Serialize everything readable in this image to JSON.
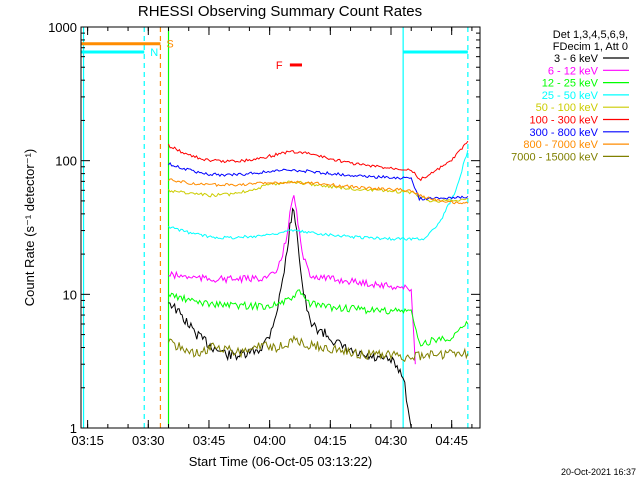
{
  "chart_data": {
    "type": "line",
    "title": "RHESSI Observing Summary Count Rates",
    "xlabel": "Start Time (06-Oct-05 03:13:22)",
    "ylabel": "Count Rate (s⁻¹ detector⁻¹)",
    "y_scale": "log",
    "ylim": [
      1,
      1000
    ],
    "xlim": [
      "03:13:22",
      "04:52:00"
    ],
    "x_ticks": [
      "03:15",
      "03:30",
      "03:45",
      "04:00",
      "04:15",
      "04:30",
      "04:45"
    ],
    "y_ticks": [
      "1",
      "10",
      "100",
      "1000"
    ],
    "legend_header": [
      "Det 1,3,4,5,6,9,",
      "FDecim 1, Att 0"
    ],
    "legend_position": "top-right",
    "grid": false,
    "footer": "20-Oct-2021 16:37",
    "series": [
      {
        "name": "3 - 6 keV",
        "color": "#000000",
        "x": [
          "03:35",
          "03:38",
          "03:42",
          "03:46",
          "03:50",
          "03:54",
          "03:58",
          "04:00",
          "04:02",
          "04:04",
          "04:05",
          "04:06",
          "04:07",
          "04:08",
          "04:10",
          "04:14",
          "04:18",
          "04:22",
          "04:26",
          "04:30",
          "04:33",
          "04:35"
        ],
        "y": [
          9,
          7,
          5,
          4,
          3.5,
          3.5,
          4,
          5,
          8,
          18,
          32,
          45,
          25,
          12,
          6,
          5,
          4,
          3.5,
          3.3,
          3.2,
          2.5,
          1
        ]
      },
      {
        "name": "6 - 12 keV",
        "color": "#ff00ff",
        "x": [
          "03:35",
          "03:40",
          "03:45",
          "03:50",
          "03:55",
          "04:00",
          "04:02",
          "04:04",
          "04:05",
          "04:06",
          "04:07",
          "04:08",
          "04:10",
          "04:15",
          "04:20",
          "04:25",
          "04:30",
          "04:35",
          "04:36"
        ],
        "y": [
          14,
          13.5,
          13,
          13,
          13,
          13.5,
          15,
          25,
          40,
          55,
          35,
          20,
          14,
          13,
          12.5,
          12,
          11.5,
          11,
          3
        ]
      },
      {
        "name": "12 - 25 keV",
        "color": "#00ff00",
        "x": [
          "03:35",
          "03:40",
          "03:45",
          "03:50",
          "03:55",
          "04:00",
          "04:05",
          "04:07",
          "04:10",
          "04:15",
          "04:20",
          "04:25",
          "04:30",
          "04:35",
          "04:37",
          "04:40",
          "04:45",
          "04:49"
        ],
        "y": [
          10,
          9,
          8.5,
          8.3,
          8.2,
          8.2,
          9,
          10.5,
          8.5,
          8,
          7.8,
          7.6,
          7.5,
          7.5,
          4.2,
          4.5,
          4.8,
          6
        ]
      },
      {
        "name": "25 - 50 keV",
        "color": "#00ffff",
        "x": [
          "03:35",
          "03:40",
          "03:45",
          "03:50",
          "03:55",
          "04:00",
          "04:05",
          "04:10",
          "04:15",
          "04:20",
          "04:25",
          "04:30",
          "04:35",
          "04:38",
          "04:42",
          "04:46",
          "04:49"
        ],
        "y": [
          32,
          29,
          27,
          26.5,
          27,
          28,
          30,
          29,
          28,
          27,
          26.5,
          26,
          26,
          26,
          34,
          60,
          120
        ]
      },
      {
        "name": "50 - 100 keV",
        "color": "#cccc00",
        "x": [
          "03:35",
          "03:40",
          "03:45",
          "03:50",
          "03:55",
          "04:00",
          "04:05",
          "04:10",
          "04:15",
          "04:20",
          "04:25",
          "04:30",
          "04:35",
          "04:37",
          "04:40",
          "04:45",
          "04:49"
        ],
        "y": [
          60,
          57,
          55,
          56,
          60,
          66,
          70,
          67,
          64,
          62,
          60,
          59,
          58,
          54,
          50,
          50,
          52
        ]
      },
      {
        "name": "100 - 300 keV",
        "color": "#ff0000",
        "x": [
          "03:35",
          "03:40",
          "03:45",
          "03:50",
          "03:55",
          "04:00",
          "04:05",
          "04:10",
          "04:15",
          "04:20",
          "04:25",
          "04:30",
          "04:35",
          "04:37",
          "04:40",
          "04:45",
          "04:49"
        ],
        "y": [
          130,
          110,
          100,
          99,
          101,
          108,
          117,
          113,
          103,
          96,
          91,
          88,
          86,
          72,
          80,
          100,
          140
        ]
      },
      {
        "name": "300 - 800 keV",
        "color": "#0000ff",
        "x": [
          "03:35",
          "03:40",
          "03:45",
          "03:50",
          "03:55",
          "04:00",
          "04:05",
          "04:10",
          "04:15",
          "04:20",
          "04:25",
          "04:30",
          "04:35",
          "04:37",
          "04:40",
          "04:45",
          "04:49"
        ],
        "y": [
          95,
          85,
          79,
          78,
          80,
          83,
          85,
          83,
          80,
          78,
          76,
          75,
          74,
          52,
          52,
          53,
          54
        ]
      },
      {
        "name": "800 - 7000 keV",
        "color": "#ff8c00",
        "x": [
          "03:35",
          "03:40",
          "03:45",
          "03:50",
          "03:55",
          "04:00",
          "04:05",
          "04:10",
          "04:15",
          "04:20",
          "04:25",
          "04:30",
          "04:35",
          "04:37",
          "04:40",
          "04:45",
          "04:49"
        ],
        "y": [
          72,
          68,
          66,
          66,
          67,
          68,
          69,
          68,
          66,
          64,
          62,
          61,
          60,
          55,
          52,
          49,
          48
        ]
      },
      {
        "name": "7000 - 15000 keV",
        "color": "#808000",
        "x": [
          "03:35",
          "03:38",
          "03:42",
          "03:46",
          "03:50",
          "03:54",
          "03:58",
          "04:02",
          "04:06",
          "04:10",
          "04:14",
          "04:18",
          "04:22",
          "04:26",
          "04:30",
          "04:33",
          "04:38",
          "04:42",
          "04:46",
          "04:49"
        ],
        "y": [
          4.5,
          4,
          3.6,
          4,
          3.8,
          3.7,
          4.2,
          4,
          4.5,
          4.2,
          4,
          3.8,
          3.6,
          3.5,
          3.6,
          3.3,
          3.5,
          3.5,
          3.6,
          3.6
        ]
      }
    ],
    "flags": [
      {
        "label": "S",
        "color": "#ff8c00",
        "x_start": "03:13:22",
        "x_end": "03:33:00",
        "y": 750
      },
      {
        "label": "N",
        "color": "#00ffff",
        "x_start": "03:13:22",
        "x_end": "03:29:00",
        "y": 650
      },
      {
        "label": "F",
        "color": "#ff0000",
        "x_start": "04:05:00",
        "x_end": "04:08:00",
        "y": 520
      },
      {
        "label": "",
        "color": "#00ffff",
        "x_start": "04:33:00",
        "x_end": "04:49:00",
        "y": 650
      }
    ],
    "markers": [
      {
        "time": "03:14:00",
        "color": "#00ffff",
        "style": "solid"
      },
      {
        "time": "03:29:00",
        "color": "#00ffff",
        "style": "dashed"
      },
      {
        "time": "03:33:00",
        "color": "#ff8c00",
        "style": "dashed"
      },
      {
        "time": "03:35:00",
        "color": "#00ff00",
        "style": "solid"
      },
      {
        "time": "04:33:00",
        "color": "#00ffff",
        "style": "solid"
      },
      {
        "time": "04:49:00",
        "color": "#00ffff",
        "style": "dashed"
      }
    ]
  }
}
